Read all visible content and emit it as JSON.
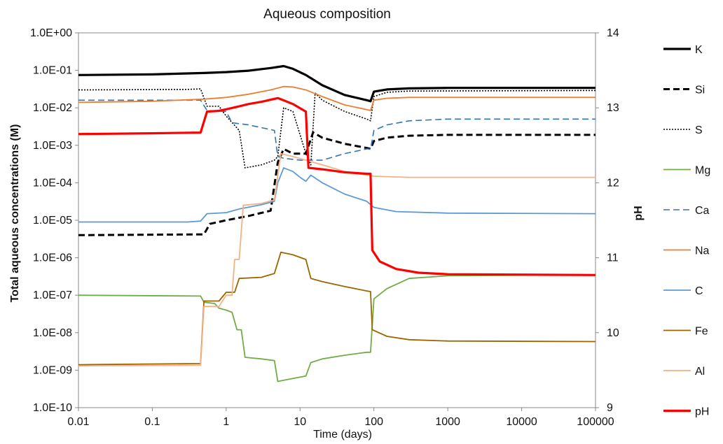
{
  "chart_data": {
    "type": "line",
    "title": "Aqueous composition",
    "xlabel": "Time (days)",
    "ylabel": "Total aqueous concentrations (M)",
    "y2label": "pH",
    "x_scale": "log",
    "y_scale": "log",
    "xlim": [
      0.01,
      100000
    ],
    "ylim": [
      1e-10,
      1
    ],
    "y2lim": [
      9,
      14
    ],
    "x_ticks": [
      "0.01",
      "0.1",
      "1",
      "10",
      "100",
      "1000",
      "10000",
      "100000"
    ],
    "y_ticks": [
      "1.0E-10",
      "1.0E-09",
      "1.0E-08",
      "1.0E-07",
      "1.0E-06",
      "1.0E-05",
      "1.0E-04",
      "1.0E-03",
      "1.0E-02",
      "1.0E-01",
      "1.0E+00"
    ],
    "y2_ticks": [
      "9",
      "10",
      "11",
      "12",
      "13",
      "14"
    ],
    "grid": false,
    "legend_position": "right",
    "series": [
      {
        "name": "K",
        "axis": "left",
        "color": "#000000",
        "style": "solid",
        "width": 3.2,
        "points": [
          [
            0.01,
            0.075
          ],
          [
            0.1,
            0.078
          ],
          [
            0.5,
            0.085
          ],
          [
            1,
            0.09
          ],
          [
            2,
            0.098
          ],
          [
            4,
            0.115
          ],
          [
            6,
            0.13
          ],
          [
            8,
            0.11
          ],
          [
            12,
            0.075
          ],
          [
            20,
            0.04
          ],
          [
            40,
            0.022
          ],
          [
            80,
            0.016
          ],
          [
            90,
            0.015
          ],
          [
            100,
            0.027
          ],
          [
            150,
            0.031
          ],
          [
            300,
            0.033
          ],
          [
            1000,
            0.034
          ],
          [
            100000,
            0.034
          ]
        ]
      },
      {
        "name": "Si",
        "axis": "left",
        "color": "#000000",
        "style": "dashed",
        "width": 3,
        "points": [
          [
            0.01,
            4e-06
          ],
          [
            0.5,
            4.2e-06
          ],
          [
            0.6,
            8e-06
          ],
          [
            1,
            1e-05
          ],
          [
            2,
            1.3e-05
          ],
          [
            4,
            1.8e-05
          ],
          [
            5,
            0.00035
          ],
          [
            6,
            0.0008
          ],
          [
            8,
            0.0006
          ],
          [
            12,
            0.0006
          ],
          [
            15,
            0.0022
          ],
          [
            20,
            0.0016
          ],
          [
            40,
            0.0011
          ],
          [
            80,
            0.00085
          ],
          [
            90,
            0.0008
          ],
          [
            100,
            0.0013
          ],
          [
            150,
            0.0016
          ],
          [
            300,
            0.0018
          ],
          [
            1000,
            0.0019
          ],
          [
            100000,
            0.0019
          ]
        ]
      },
      {
        "name": "S",
        "axis": "left",
        "color": "#000000",
        "style": "dotted",
        "width": 1.6,
        "points": [
          [
            0.01,
            0.03
          ],
          [
            0.3,
            0.031
          ],
          [
            0.45,
            0.032
          ],
          [
            0.55,
            0.011
          ],
          [
            0.8,
            0.011
          ],
          [
            1,
            0.006
          ],
          [
            1.5,
            0.0025
          ],
          [
            1.8,
            0.00025
          ],
          [
            3,
            0.0003
          ],
          [
            4.5,
            0.0004
          ],
          [
            5,
            0.0005
          ],
          [
            6,
            0.01
          ],
          [
            8,
            0.008
          ],
          [
            12,
            0.0006
          ],
          [
            14,
            0.0003
          ],
          [
            16,
            0.025
          ],
          [
            20,
            0.016
          ],
          [
            40,
            0.008
          ],
          [
            80,
            0.005
          ],
          [
            90,
            0.0045
          ],
          [
            100,
            0.02
          ],
          [
            150,
            0.026
          ],
          [
            300,
            0.028
          ],
          [
            100000,
            0.029
          ]
        ]
      },
      {
        "name": "Mg",
        "axis": "left",
        "color": "#70AD47",
        "style": "solid",
        "width": 1.8,
        "points": [
          [
            0.01,
            1e-07
          ],
          [
            0.45,
            9.5e-08
          ],
          [
            0.5,
            6.5e-08
          ],
          [
            0.7,
            6e-08
          ],
          [
            0.8,
            4.5e-08
          ],
          [
            1,
            4e-08
          ],
          [
            1.2,
            3.5e-08
          ],
          [
            1.4,
            1.2e-08
          ],
          [
            1.6,
            1.2e-08
          ],
          [
            1.8,
            2.2e-09
          ],
          [
            3,
            2e-09
          ],
          [
            4.5,
            1.8e-09
          ],
          [
            5,
            5e-10
          ],
          [
            8,
            6e-10
          ],
          [
            12,
            7e-10
          ],
          [
            14,
            1.6e-09
          ],
          [
            20,
            2e-09
          ],
          [
            40,
            2.5e-09
          ],
          [
            80,
            3e-09
          ],
          [
            90,
            3e-09
          ],
          [
            100,
            8e-08
          ],
          [
            150,
            1.5e-07
          ],
          [
            300,
            2.8e-07
          ],
          [
            1000,
            3.3e-07
          ],
          [
            100000,
            3.5e-07
          ]
        ]
      },
      {
        "name": "Ca",
        "axis": "left",
        "color": "#2E75B6",
        "style": "dashed",
        "width": 1.6,
        "points": [
          [
            0.01,
            0.016
          ],
          [
            0.3,
            0.016
          ],
          [
            0.45,
            0.016
          ],
          [
            0.55,
            0.0085
          ],
          [
            1,
            0.008
          ],
          [
            1.2,
            0.004
          ],
          [
            2,
            0.0035
          ],
          [
            4.5,
            0.0025
          ],
          [
            5,
            0.0005
          ],
          [
            6,
            0.00045
          ],
          [
            10,
            0.0004
          ],
          [
            20,
            0.0004
          ],
          [
            40,
            0.0006
          ],
          [
            80,
            0.0008
          ],
          [
            90,
            0.0008
          ],
          [
            100,
            0.0025
          ],
          [
            150,
            0.0035
          ],
          [
            300,
            0.0045
          ],
          [
            1000,
            0.005
          ],
          [
            100000,
            0.005
          ]
        ]
      },
      {
        "name": "Na",
        "axis": "left",
        "color": "#ED7D31",
        "style": "solid",
        "width": 1.8,
        "points": [
          [
            0.01,
            0.014
          ],
          [
            0.1,
            0.015
          ],
          [
            0.5,
            0.017
          ],
          [
            1,
            0.019
          ],
          [
            2,
            0.023
          ],
          [
            4,
            0.03
          ],
          [
            6,
            0.037
          ],
          [
            8,
            0.036
          ],
          [
            12,
            0.03
          ],
          [
            20,
            0.02
          ],
          [
            40,
            0.012
          ],
          [
            80,
            0.009
          ],
          [
            90,
            0.0085
          ],
          [
            100,
            0.016
          ],
          [
            150,
            0.018
          ],
          [
            300,
            0.019
          ],
          [
            100000,
            0.019
          ]
        ]
      },
      {
        "name": "C",
        "axis": "left",
        "color": "#5B9BD5",
        "style": "solid",
        "width": 1.8,
        "points": [
          [
            0.01,
            9e-06
          ],
          [
            0.3,
            9e-06
          ],
          [
            0.45,
            9.5e-06
          ],
          [
            0.55,
            1.5e-05
          ],
          [
            1,
            1.6e-05
          ],
          [
            1.5,
            2e-05
          ],
          [
            3,
            2.6e-05
          ],
          [
            4.5,
            3.2e-05
          ],
          [
            5,
            0.0001
          ],
          [
            6,
            0.00025
          ],
          [
            8,
            0.0002
          ],
          [
            10,
            0.00014
          ],
          [
            12,
            0.00011
          ],
          [
            14,
            0.00016
          ],
          [
            20,
            0.0001
          ],
          [
            40,
            5e-05
          ],
          [
            80,
            3.2e-05
          ],
          [
            100,
            2.2e-05
          ],
          [
            200,
            1.7e-05
          ],
          [
            1000,
            1.55e-05
          ],
          [
            100000,
            1.5e-05
          ]
        ]
      },
      {
        "name": "Fe",
        "axis": "left",
        "color": "#9C6500",
        "style": "solid",
        "width": 1.8,
        "points": [
          [
            0.01,
            1.4e-09
          ],
          [
            0.45,
            1.5e-09
          ],
          [
            0.5,
            7e-08
          ],
          [
            0.8,
            7e-08
          ],
          [
            1,
            1.2e-07
          ],
          [
            1.3,
            1.2e-07
          ],
          [
            1.5,
            2.8e-07
          ],
          [
            3,
            3e-07
          ],
          [
            4.5,
            3.8e-07
          ],
          [
            5.5,
            1.4e-06
          ],
          [
            8,
            1.2e-06
          ],
          [
            12,
            9e-07
          ],
          [
            14,
            2.8e-07
          ],
          [
            20,
            2.3e-07
          ],
          [
            40,
            1.7e-07
          ],
          [
            80,
            1.3e-07
          ],
          [
            90,
            1.25e-07
          ],
          [
            95,
            1.2e-08
          ],
          [
            150,
            8e-09
          ],
          [
            300,
            6.5e-09
          ],
          [
            1000,
            6e-09
          ],
          [
            100000,
            5.8e-09
          ]
        ]
      },
      {
        "name": "Al",
        "axis": "left",
        "color": "#F4B183",
        "style": "solid",
        "width": 1.8,
        "points": [
          [
            0.01,
            1.3e-09
          ],
          [
            0.45,
            1.35e-09
          ],
          [
            0.5,
            5e-08
          ],
          [
            0.8,
            5e-08
          ],
          [
            1,
            1e-07
          ],
          [
            1.2,
            1e-07
          ],
          [
            1.3,
            9e-07
          ],
          [
            1.5,
            9e-07
          ],
          [
            1.7,
            2.5e-05
          ],
          [
            3,
            2.8e-05
          ],
          [
            4.5,
            3.5e-05
          ],
          [
            5.5,
            0.0006
          ],
          [
            8,
            0.0005
          ],
          [
            12,
            0.0004
          ],
          [
            20,
            0.0003
          ],
          [
            40,
            0.0002
          ],
          [
            80,
            0.00016
          ],
          [
            100,
            0.00015
          ],
          [
            300,
            0.00014
          ],
          [
            1000,
            0.00014
          ],
          [
            100000,
            0.00014
          ]
        ]
      },
      {
        "name": "pH",
        "axis": "right",
        "color": "#FF0000",
        "style": "solid",
        "width": 3.2,
        "points": [
          [
            0.01,
            12.65
          ],
          [
            0.1,
            12.66
          ],
          [
            0.45,
            12.67
          ],
          [
            0.55,
            12.95
          ],
          [
            0.8,
            12.96
          ],
          [
            1,
            12.98
          ],
          [
            1.5,
            13.02
          ],
          [
            2,
            13.05
          ],
          [
            3,
            13.08
          ],
          [
            5,
            13.13
          ],
          [
            6,
            13.1
          ],
          [
            8,
            13.05
          ],
          [
            12,
            12.95
          ],
          [
            13,
            12.2
          ],
          [
            20,
            12.18
          ],
          [
            40,
            12.14
          ],
          [
            80,
            12.12
          ],
          [
            90,
            12.12
          ],
          [
            95,
            11.1
          ],
          [
            120,
            10.95
          ],
          [
            200,
            10.85
          ],
          [
            400,
            10.8
          ],
          [
            1000,
            10.78
          ],
          [
            100000,
            10.77
          ]
        ]
      }
    ]
  }
}
